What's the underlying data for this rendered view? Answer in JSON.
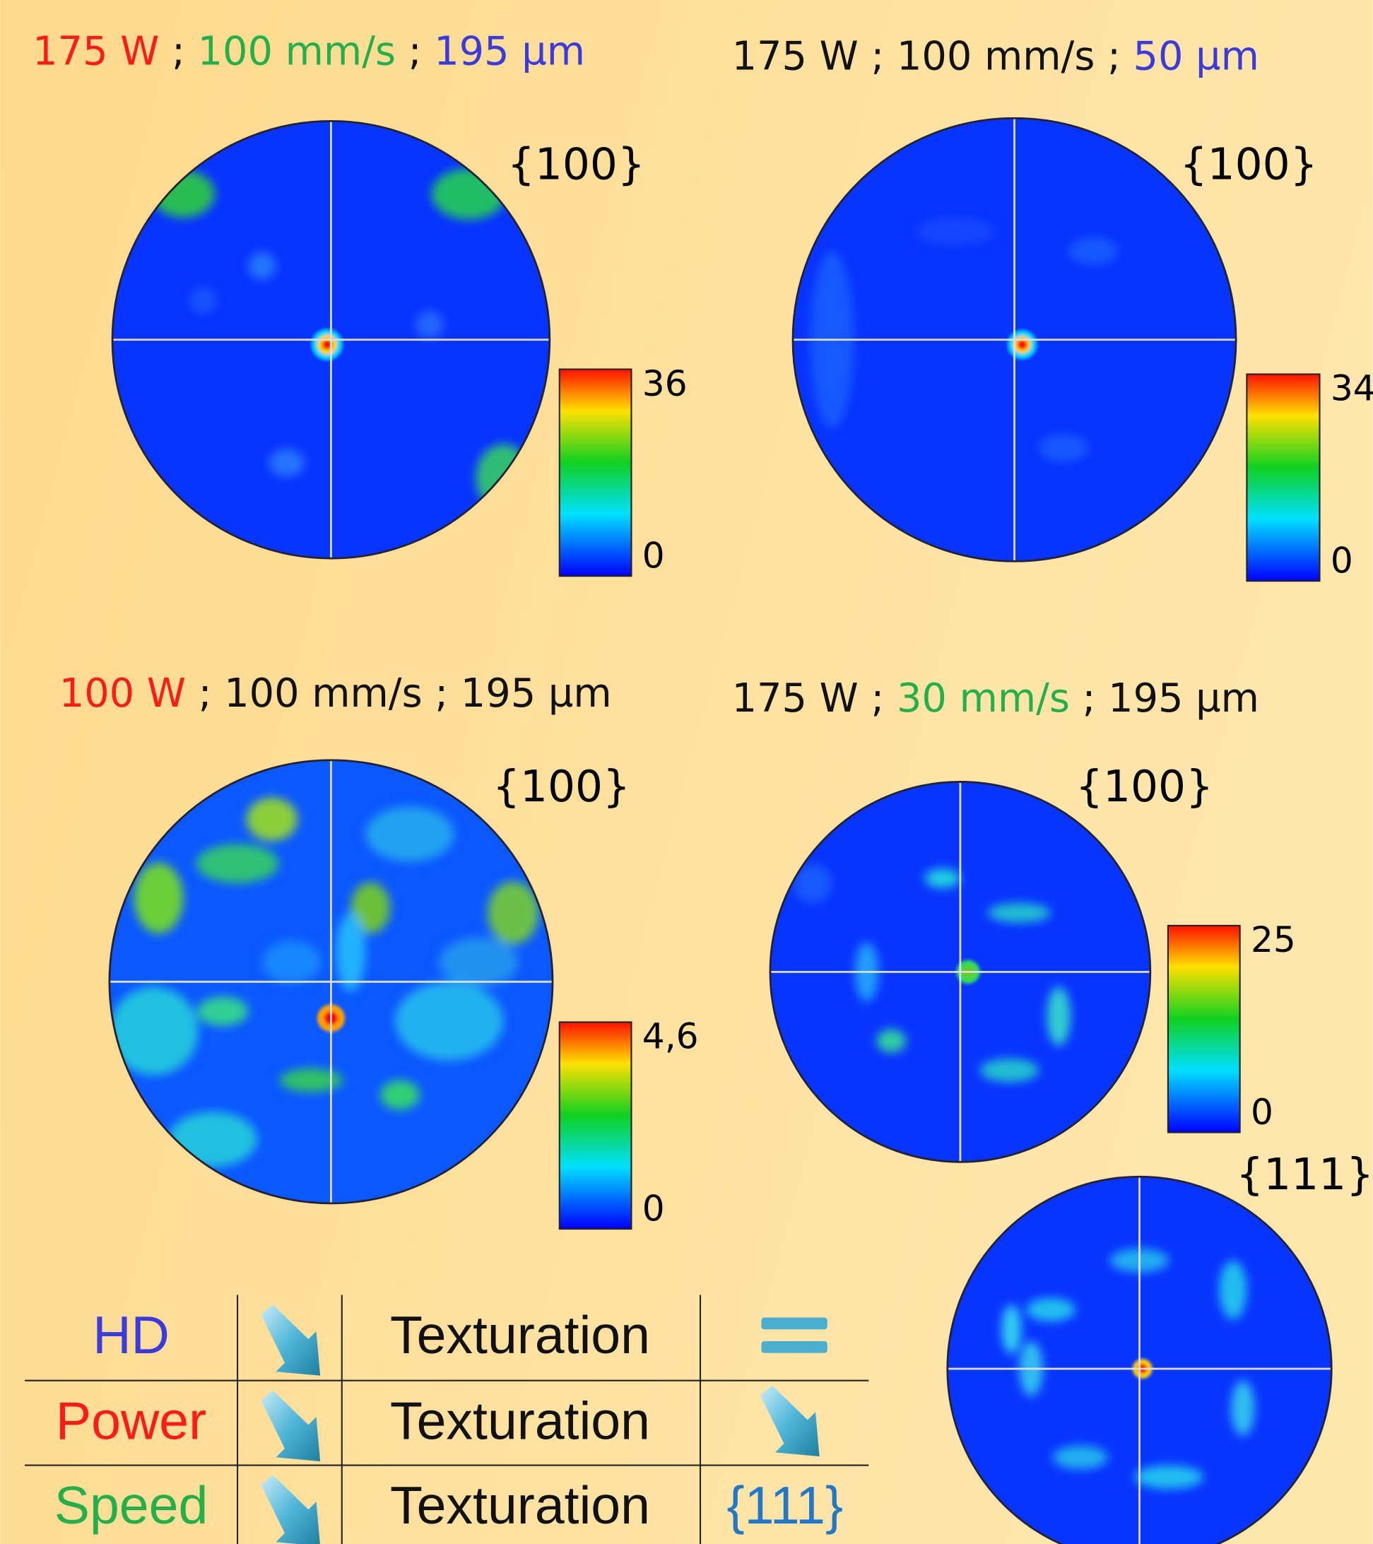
{
  "panels": [
    {
      "title": [
        {
          "text": "175 W",
          "color": "#ff1a1a"
        },
        {
          "text": " ; ",
          "color": "#111111"
        },
        {
          "text": "100 mm/s",
          "color": "#22b04a"
        },
        {
          "text": " ; ",
          "color": "#111111"
        },
        {
          "text": "195 µm",
          "color": "#3a3ae0"
        }
      ],
      "pole_figures": [
        {
          "label": "{100}"
        }
      ],
      "colorbar": {
        "max": "36",
        "min": "0"
      }
    },
    {
      "title": [
        {
          "text": "175 W ; 100 mm/s ; ",
          "color": "#111111"
        },
        {
          "text": "50 µm",
          "color": "#3a3ae0"
        }
      ],
      "pole_figures": [
        {
          "label": "{100}"
        }
      ],
      "colorbar": {
        "max": "34",
        "min": "0"
      }
    },
    {
      "title": [
        {
          "text": "100 W",
          "color": "#ff1a1a"
        },
        {
          "text": " ; 100 mm/s ; 195 µm",
          "color": "#111111"
        }
      ],
      "pole_figures": [
        {
          "label": "{100}"
        }
      ],
      "colorbar": {
        "max": "4,6",
        "min": "0"
      }
    },
    {
      "title": [
        {
          "text": "175 W ; ",
          "color": "#111111"
        },
        {
          "text": "30 mm/s",
          "color": "#22b04a"
        },
        {
          "text": " ; 195 µm",
          "color": "#111111"
        }
      ],
      "pole_figures": [
        {
          "label": "{100}"
        },
        {
          "label": "{111}"
        }
      ],
      "colorbar": {
        "max": "25",
        "min": "0"
      }
    }
  ],
  "table": {
    "rows": [
      {
        "name": "HD",
        "color": "#3a3ae0",
        "property": "Texturation"
      },
      {
        "name": "Power",
        "color": "#ff1a1a",
        "property": "Texturation"
      },
      {
        "name": "Speed",
        "color": "#22b04a",
        "property": "Texturation",
        "result": "{111}"
      }
    ]
  }
}
